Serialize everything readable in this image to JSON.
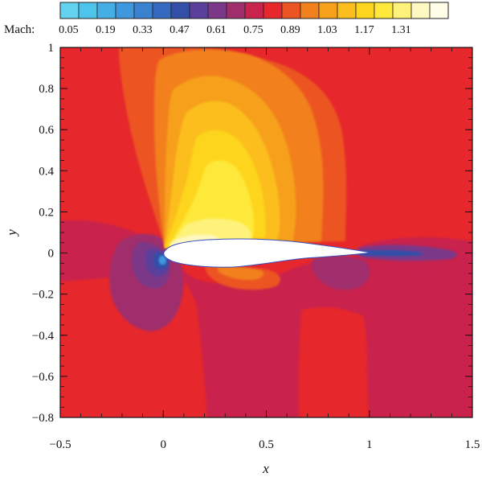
{
  "chart_data": {
    "type": "heatmap",
    "subtype": "contour",
    "title": "",
    "xlabel": "x",
    "ylabel": "y",
    "xlim": [
      -0.5,
      1.5
    ],
    "ylim": [
      -0.8,
      1.0
    ],
    "x_ticks": [
      {
        "value": -0.5,
        "label": "−0.5"
      },
      {
        "value": 0,
        "label": "0"
      },
      {
        "value": 0.5,
        "label": "0.5"
      },
      {
        "value": 1,
        "label": "1"
      },
      {
        "value": 1.5,
        "label": "1.5"
      }
    ],
    "y_ticks": [
      {
        "value": 1,
        "label": "1"
      },
      {
        "value": 0.8,
        "label": "0.8"
      },
      {
        "value": 0.6,
        "label": "0.6"
      },
      {
        "value": 0.4,
        "label": "0.4"
      },
      {
        "value": 0.2,
        "label": "0.2"
      },
      {
        "value": 0,
        "label": "0"
      },
      {
        "value": -0.2,
        "label": "−0.2"
      },
      {
        "value": -0.4,
        "label": "−0.4"
      },
      {
        "value": -0.6,
        "label": "−0.6"
      },
      {
        "value": -0.8,
        "label": "−0.8"
      }
    ],
    "colorbar": {
      "label": "Mach:",
      "tick_labels": [
        "0.05",
        "0.19",
        "0.33",
        "0.47",
        "0.61",
        "0.75",
        "0.89",
        "1.03",
        "1.17",
        "1.31"
      ],
      "tick_values": [
        0.05,
        0.19,
        0.33,
        0.47,
        0.61,
        0.75,
        0.89,
        1.03,
        1.17,
        1.31
      ],
      "levels": [
        {
          "value": 0.05,
          "color": "#62d2ee"
        },
        {
          "value": 0.12,
          "color": "#4ec3ec"
        },
        {
          "value": 0.19,
          "color": "#45aee5"
        },
        {
          "value": 0.26,
          "color": "#3f98dd"
        },
        {
          "value": 0.33,
          "color": "#3a82d0"
        },
        {
          "value": 0.4,
          "color": "#3569c0"
        },
        {
          "value": 0.47,
          "color": "#334fa8"
        },
        {
          "value": 0.54,
          "color": "#5a3f9c"
        },
        {
          "value": 0.61,
          "color": "#7b3788"
        },
        {
          "value": 0.68,
          "color": "#a02d6c"
        },
        {
          "value": 0.75,
          "color": "#c8244e"
        },
        {
          "value": 0.82,
          "color": "#e6272c"
        },
        {
          "value": 0.89,
          "color": "#ec5424"
        },
        {
          "value": 0.96,
          "color": "#f2801f"
        },
        {
          "value": 1.03,
          "color": "#f7a01c"
        },
        {
          "value": 1.1,
          "color": "#fbbe1d"
        },
        {
          "value": 1.17,
          "color": "#fdd51f"
        },
        {
          "value": 1.24,
          "color": "#fee93a"
        },
        {
          "value": 1.31,
          "color": "#fef27a"
        },
        {
          "value": 1.38,
          "color": "#fff8c0"
        },
        {
          "value": 1.45,
          "color": "#fffce8"
        }
      ]
    },
    "grid": false
  }
}
